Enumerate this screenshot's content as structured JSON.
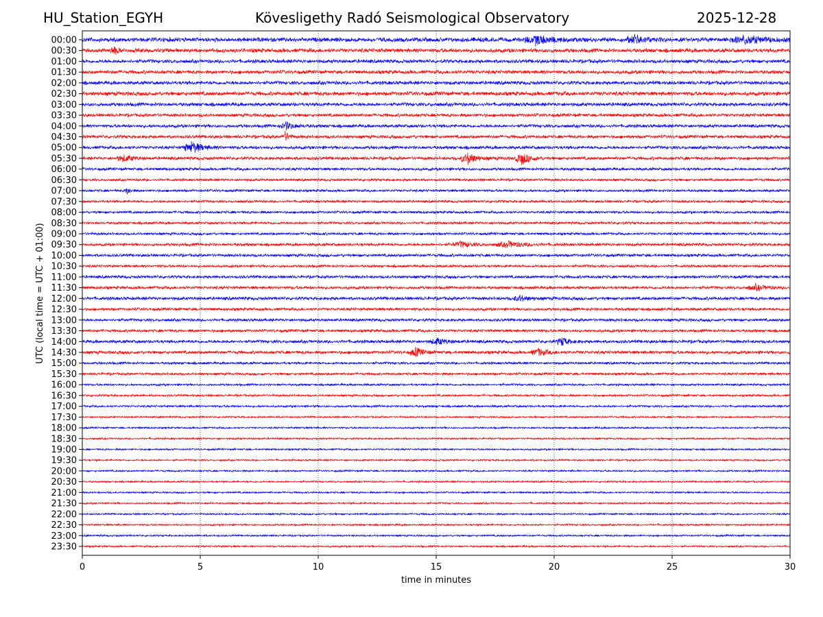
{
  "header": {
    "station": "HU_Station_EGYH",
    "observatory": "Kövesligethy Radó Seismological Observatory",
    "date": "2025-12-28"
  },
  "chart_data": {
    "type": "line",
    "subtype": "helicorder",
    "xlabel": "time in minutes",
    "ylabel": "UTC (local time = UTC + 01:00)",
    "xlim": [
      0,
      30
    ],
    "xticks": [
      "0",
      "5",
      "10",
      "15",
      "20",
      "25",
      "30"
    ],
    "grid": "vertical dotted at every 5 minutes",
    "colors": [
      "#0000ff",
      "#ff0000"
    ],
    "rows": [
      "00:00",
      "00:30",
      "01:00",
      "01:30",
      "02:00",
      "02:30",
      "03:00",
      "03:30",
      "04:00",
      "04:30",
      "05:00",
      "05:30",
      "06:00",
      "06:30",
      "07:00",
      "07:30",
      "08:00",
      "08:30",
      "09:00",
      "09:30",
      "10:00",
      "10:30",
      "11:00",
      "11:30",
      "12:00",
      "12:30",
      "13:00",
      "13:30",
      "14:00",
      "14:30",
      "15:00",
      "15:30",
      "16:00",
      "16:30",
      "17:00",
      "17:30",
      "18:00",
      "18:30",
      "19:00",
      "19:30",
      "20:00",
      "20:30",
      "21:00",
      "21:30",
      "22:00",
      "22:30",
      "23:00",
      "23:30"
    ],
    "noise_level": [
      1.2,
      1.1,
      1.0,
      1.0,
      1.0,
      1.1,
      1.0,
      0.9,
      0.9,
      0.9,
      0.9,
      0.9,
      0.8,
      0.7,
      0.7,
      0.7,
      0.7,
      0.7,
      0.7,
      0.8,
      0.8,
      0.7,
      0.8,
      0.8,
      0.9,
      0.8,
      0.8,
      0.8,
      0.9,
      0.9,
      0.7,
      0.7,
      0.6,
      0.6,
      0.6,
      0.5,
      0.5,
      0.5,
      0.5,
      0.5,
      0.5,
      0.5,
      0.5,
      0.5,
      0.5,
      0.5,
      0.5,
      0.5
    ],
    "events": [
      {
        "row": "00:00",
        "minute": 19.2,
        "amplitude": 3,
        "duration": 1.5
      },
      {
        "row": "00:00",
        "minute": 23.4,
        "amplitude": 3,
        "duration": 1
      },
      {
        "row": "00:00",
        "minute": 28,
        "amplitude": 2.5,
        "duration": 2
      },
      {
        "row": "00:30",
        "minute": 1.3,
        "amplitude": 3,
        "duration": 0.4
      },
      {
        "row": "04:00",
        "minute": 8.6,
        "amplitude": 2.5,
        "duration": 0.8
      },
      {
        "row": "04:30",
        "minute": 8.6,
        "amplitude": 3,
        "duration": 0.4
      },
      {
        "row": "05:00",
        "minute": 4.6,
        "amplitude": 4,
        "duration": 1
      },
      {
        "row": "05:30",
        "minute": 16.3,
        "amplitude": 4,
        "duration": 0.8
      },
      {
        "row": "05:30",
        "minute": 18.6,
        "amplitude": 4,
        "duration": 0.8
      },
      {
        "row": "05:30",
        "minute": 1.7,
        "amplitude": 2,
        "duration": 1
      },
      {
        "row": "07:00",
        "minute": 1.9,
        "amplitude": 2.5,
        "duration": 0.3
      },
      {
        "row": "09:30",
        "minute": 16,
        "amplitude": 2,
        "duration": 1
      },
      {
        "row": "09:30",
        "minute": 18,
        "amplitude": 2,
        "duration": 1.5
      },
      {
        "row": "11:30",
        "minute": 28.5,
        "amplitude": 2,
        "duration": 1
      },
      {
        "row": "12:00",
        "minute": 18.5,
        "amplitude": 2,
        "duration": 0.8
      },
      {
        "row": "14:00",
        "minute": 15,
        "amplitude": 2,
        "duration": 1
      },
      {
        "row": "14:00",
        "minute": 20.3,
        "amplitude": 3,
        "duration": 0.6
      },
      {
        "row": "14:30",
        "minute": 14.1,
        "amplitude": 3,
        "duration": 0.7
      },
      {
        "row": "14:30",
        "minute": 19.3,
        "amplitude": 2.5,
        "duration": 0.8
      }
    ]
  }
}
